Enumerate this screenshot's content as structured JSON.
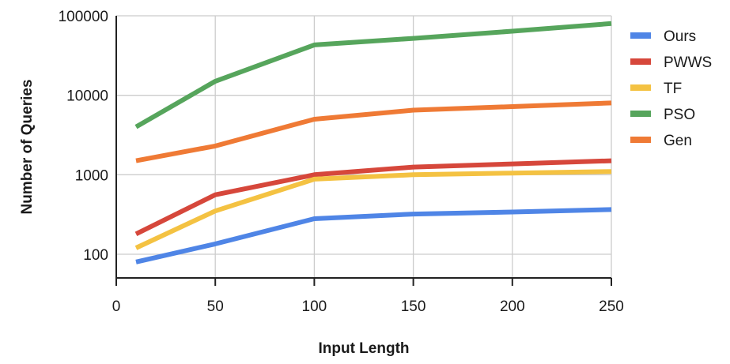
{
  "chart_data": {
    "type": "line",
    "title": "",
    "xlabel": "Input Length",
    "ylabel": "Number of Queries",
    "x_scale": "linear",
    "y_scale": "log",
    "xlim": [
      0,
      250
    ],
    "ylim": [
      50,
      100000
    ],
    "x_ticks": [
      0,
      50,
      100,
      150,
      200,
      250
    ],
    "x_tick_labels": [
      "0",
      "50",
      "100",
      "150",
      "200",
      "250"
    ],
    "y_ticks": [
      100,
      1000,
      10000,
      100000
    ],
    "y_tick_labels": [
      "100",
      "1000",
      "10000",
      "100000"
    ],
    "grid": true,
    "legend_position": "right",
    "series": [
      {
        "name": "Ours",
        "color": "#4f85e6",
        "x": [
          10,
          50,
          100,
          150,
          200,
          250
        ],
        "y": [
          80,
          135,
          280,
          320,
          340,
          365
        ]
      },
      {
        "name": "PWWS",
        "color": "#d6473b",
        "x": [
          10,
          50,
          100,
          150,
          200,
          250
        ],
        "y": [
          180,
          560,
          1000,
          1250,
          1370,
          1500
        ]
      },
      {
        "name": "TF",
        "color": "#f4c242",
        "x": [
          10,
          50,
          100,
          150,
          200,
          250
        ],
        "y": [
          120,
          350,
          880,
          1000,
          1050,
          1100
        ]
      },
      {
        "name": "PSO",
        "color": "#56a55c",
        "x": [
          10,
          50,
          100,
          150,
          200,
          250
        ],
        "y": [
          4000,
          15000,
          43000,
          52000,
          64000,
          80000
        ]
      },
      {
        "name": "Gen",
        "color": "#ef7a35",
        "x": [
          10,
          50,
          100,
          150,
          200,
          250
        ],
        "y": [
          1500,
          2300,
          5000,
          6500,
          7200,
          8000
        ]
      }
    ]
  }
}
